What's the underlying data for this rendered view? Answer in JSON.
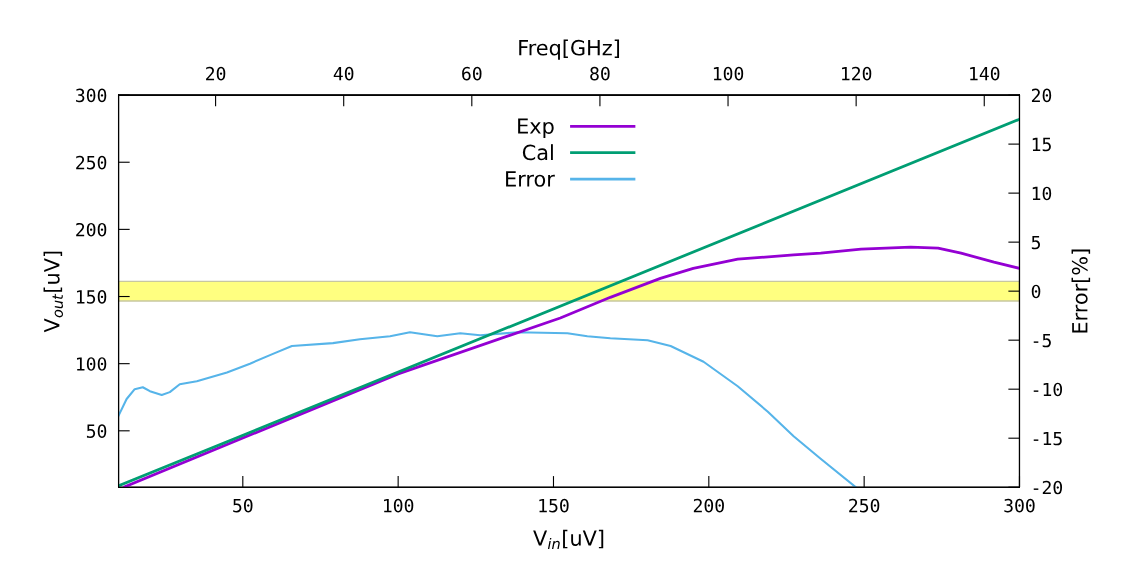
{
  "chart_data": {
    "type": "line",
    "xlabel": "V$_{in}$[uV]",
    "ylabel": "V$_{out}$[uV]",
    "y2label": "Error[%]",
    "x2label": "Freq[GHz]",
    "xlim": [
      10,
      300
    ],
    "xticks": [
      50,
      100,
      150,
      200,
      250,
      300
    ],
    "x2lim": [
      4.85,
      145.5
    ],
    "x2ticks": [
      20,
      40,
      60,
      80,
      100,
      120,
      140
    ],
    "ylim": [
      8,
      300
    ],
    "yticks": [
      50,
      100,
      150,
      200,
      250,
      300
    ],
    "y2lim": [
      -20,
      20
    ],
    "y2ticks": [
      -20,
      -15,
      -10,
      -5,
      0,
      5,
      10,
      15,
      20
    ],
    "grid": false,
    "legend": "top",
    "line_style": "solid",
    "marker": "none",
    "bands": [
      {
        "axis": "y2",
        "from": -1,
        "to": 1,
        "color": "#ffff80"
      }
    ],
    "series": [
      {
        "name": "Exp",
        "color": "#9400d3",
        "x": [
          12,
          100,
          152.2,
          168.3,
          184.4,
          195,
          209.3,
          227.3,
          236,
          249,
          265,
          273.8,
          281.2,
          291.8,
          300
        ],
        "values": [
          8.3,
          92.4,
          134,
          149.4,
          163.5,
          171,
          177.8,
          181,
          182.3,
          185.3,
          186.8,
          186,
          182.3,
          175.6,
          171
        ]
      },
      {
        "name": "Cal",
        "color": "#009e73",
        "x": [
          10,
          300
        ],
        "values": [
          9,
          282
        ]
      },
      {
        "name": "Error",
        "color": "#56b4e9",
        "axis": "y2",
        "x": [
          10,
          12.6,
          15.2,
          17.8,
          20.1,
          23.9,
          26.5,
          29.7,
          35.2,
          44.9,
          52.3,
          59.7,
          65.8,
          79,
          87.7,
          97.4,
          103.8,
          112.6,
          120,
          126.4,
          138.4,
          154.5,
          160.9,
          168.3,
          180.3,
          187.7,
          198.3,
          209.3,
          219,
          227.3,
          236,
          247.3
        ],
        "values": [
          -12.7,
          -11,
          -10,
          -9.8,
          -10.2,
          -10.6,
          -10.3,
          -9.5,
          -9.2,
          -8.3,
          -7.4,
          -6.4,
          -5.6,
          -5.3,
          -4.9,
          -4.6,
          -4.2,
          -4.6,
          -4.3,
          -4.5,
          -4.2,
          -4.3,
          -4.6,
          -4.8,
          -5,
          -5.6,
          -7.2,
          -9.7,
          -12.3,
          -14.8,
          -17.1,
          -20
        ]
      }
    ]
  }
}
